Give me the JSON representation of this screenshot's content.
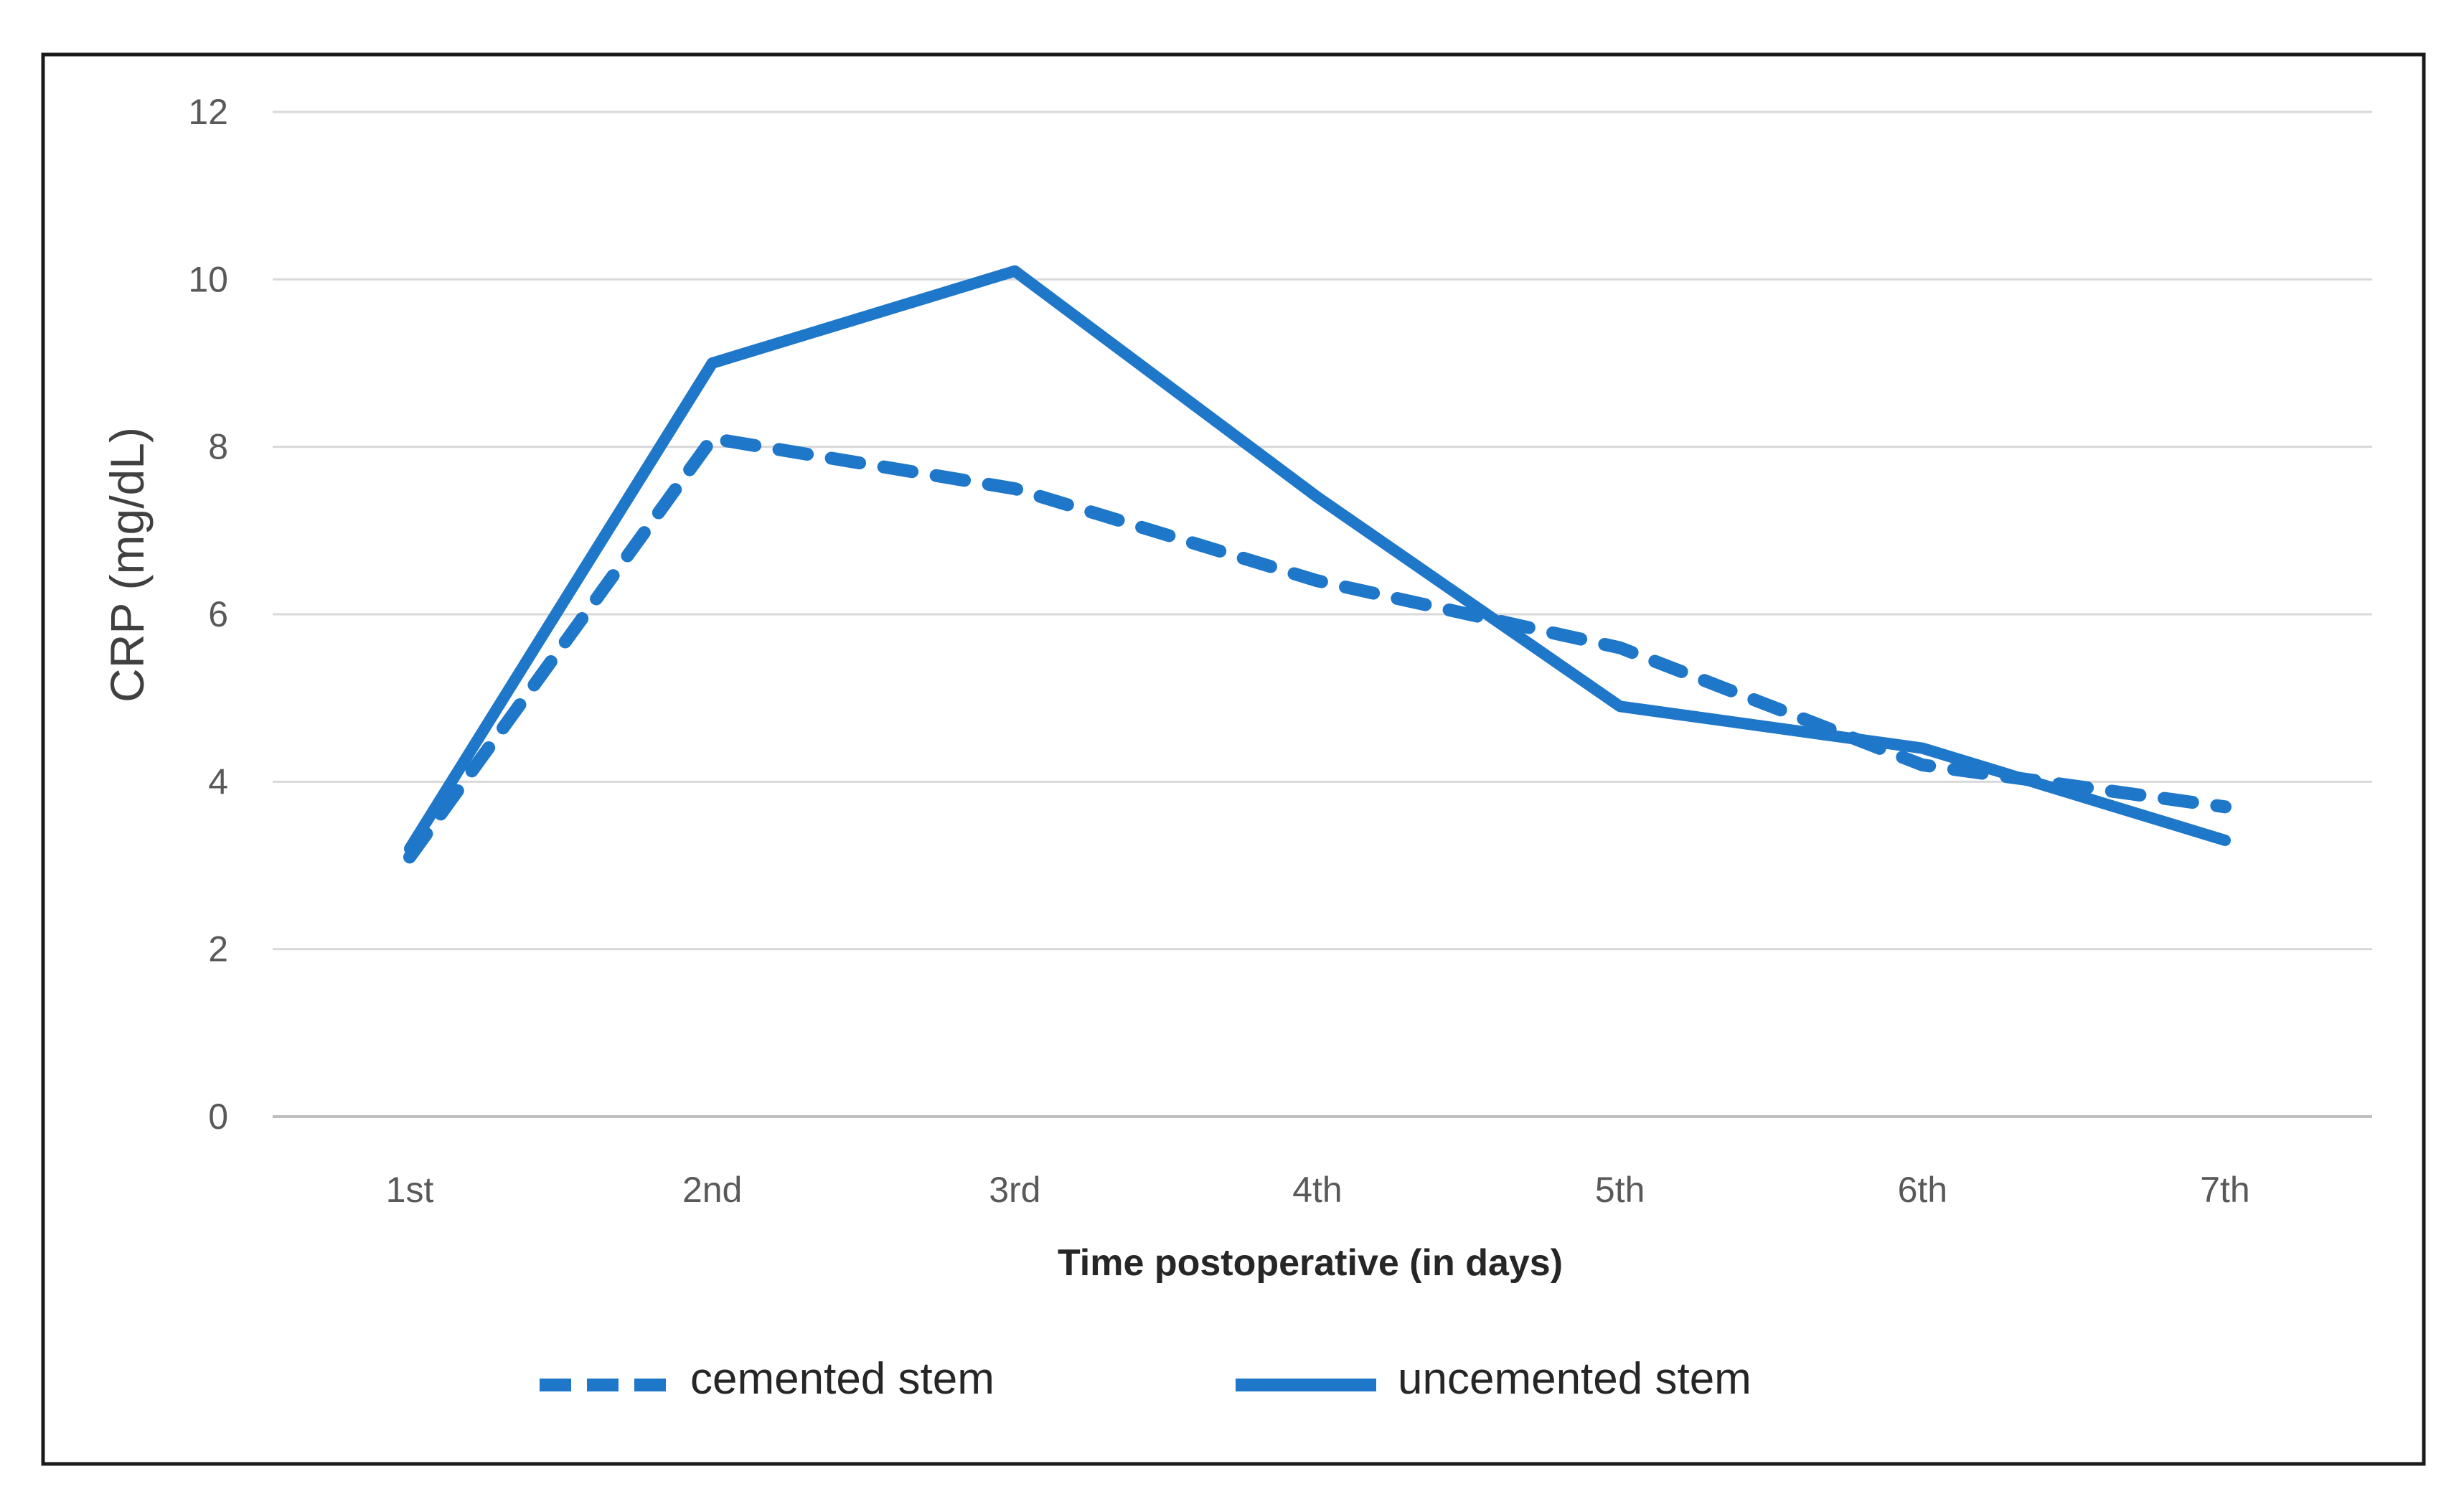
{
  "chart_data": {
    "type": "line",
    "title": "",
    "xlabel": "Time postoperative (in days)",
    "ylabel": "CRP (mg/dL)",
    "categories": [
      "1st",
      "2nd",
      "3rd",
      "4th",
      "5th",
      "6th",
      "7th"
    ],
    "ylim": [
      0,
      12
    ],
    "yticks": [
      "0",
      "2",
      "4",
      "6",
      "8",
      "10",
      "12"
    ],
    "grid": true,
    "legend_position": "bottom",
    "series": [
      {
        "name": "cemented stem",
        "style": "dashed",
        "color": "#1F77C9",
        "values": [
          3.1,
          8.1,
          7.5,
          6.4,
          5.6,
          4.2,
          3.7
        ]
      },
      {
        "name": "uncemented stem",
        "style": "solid",
        "color": "#1F77C9",
        "values": [
          3.2,
          9.0,
          10.1,
          7.4,
          4.9,
          4.4,
          3.3
        ]
      }
    ]
  }
}
